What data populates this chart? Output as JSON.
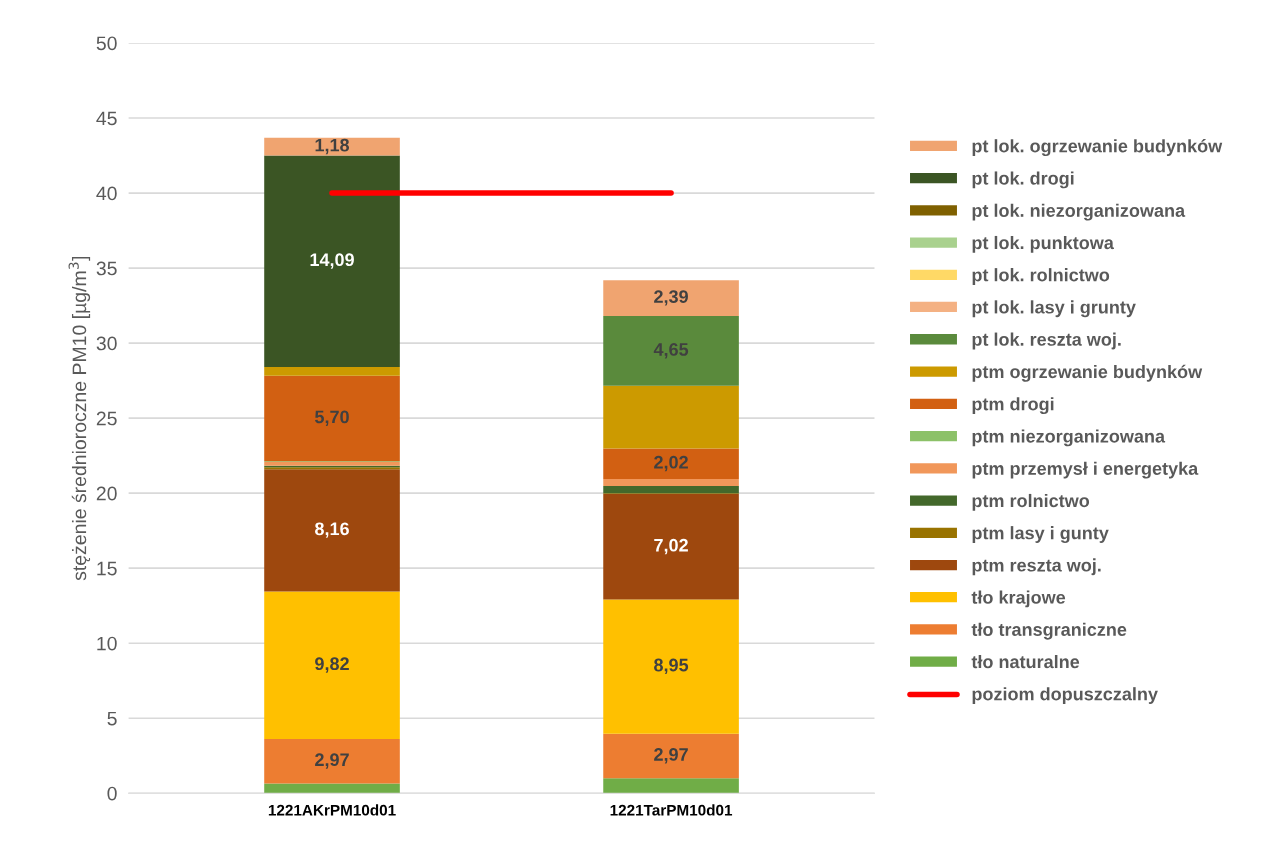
{
  "chart_data": {
    "type": "bar",
    "stacked": true,
    "ylabel": "stężenie średnioroczne PM10 [µg/m$^{3}$]",
    "categories": [
      "1221AKrPM10d01",
      "1221TarPM10d01"
    ],
    "ylim": [
      0,
      50
    ],
    "yticks": [
      0,
      5,
      10,
      15,
      20,
      25,
      30,
      35,
      40,
      45,
      50
    ],
    "grid": "y",
    "legend": "right",
    "series": [
      {
        "name": "tło naturalne",
        "color": "#70ad47",
        "values": [
          0.65,
          1.0
        ],
        "value_labels": [
          null,
          null
        ]
      },
      {
        "name": "tło transgraniczne",
        "color": "#ed7d31",
        "values": [
          2.97,
          2.97
        ],
        "value_labels": [
          "2,97",
          "2,97"
        ]
      },
      {
        "name": "tło krajowe",
        "color": "#ffc000",
        "values": [
          9.82,
          8.95
        ],
        "value_labels": [
          "9,82",
          "8,95"
        ]
      },
      {
        "name": "ptm reszta woj.",
        "color": "#9e480e",
        "values": [
          8.16,
          7.02
        ],
        "value_labels": [
          "8,16",
          "7,02"
        ]
      },
      {
        "name": "ptm lasy i gunty",
        "color": "#997300",
        "values": [
          0.13,
          0.06
        ],
        "value_labels": [
          null,
          null
        ]
      },
      {
        "name": "ptm rolnictwo",
        "color": "#43682b",
        "values": [
          0.1,
          0.47
        ],
        "value_labels": [
          null,
          null
        ]
      },
      {
        "name": "ptm przemysł i energetyka",
        "color": "#f1975a",
        "values": [
          0.25,
          0.48
        ],
        "value_labels": [
          null,
          null
        ]
      },
      {
        "name": "ptm niezorganizowana",
        "color": "#8cc168",
        "values": [
          0.05,
          0.0
        ],
        "value_labels": [
          null,
          null
        ]
      },
      {
        "name": "ptm drogi",
        "color": "#d26012",
        "values": [
          5.7,
          2.02
        ],
        "value_labels": [
          "5,70",
          "2,02"
        ]
      },
      {
        "name": "ptm ogrzewanie budynków",
        "color": "#cc9a00",
        "values": [
          0.58,
          4.18
        ],
        "value_labels": [
          null,
          null
        ]
      },
      {
        "name": "pt lok. reszta woj.",
        "color": "#5a8a3c",
        "values": [
          0.0,
          4.65
        ],
        "value_labels": [
          null,
          "4,65"
        ]
      },
      {
        "name": "pt lok. lasy i grunty",
        "color": "#f4b183",
        "values": [
          0.0,
          0.0
        ],
        "value_labels": [
          null,
          null
        ]
      },
      {
        "name": "pt lok. rolnictwo",
        "color": "#ffd966",
        "values": [
          0.0,
          0.0
        ],
        "value_labels": [
          null,
          null
        ]
      },
      {
        "name": "pt lok. punktowa",
        "color": "#a9d18e",
        "values": [
          0.0,
          0.0
        ],
        "value_labels": [
          null,
          null
        ]
      },
      {
        "name": "pt lok. niezorganizowana",
        "color": "#7f6000",
        "values": [
          0.0,
          0.0
        ],
        "value_labels": [
          null,
          null
        ]
      },
      {
        "name": "pt lok. drogi",
        "color": "#3b5524",
        "values": [
          14.09,
          0.0
        ],
        "value_labels": [
          "14,09",
          null
        ]
      },
      {
        "name": "pt lok. ogrzewanie budynków",
        "color": "#f0a470",
        "values": [
          1.18,
          2.39
        ],
        "value_labels": [
          "1,18",
          "2,39"
        ]
      },
      {
        "name": "poziom dopuszczalny",
        "type": "line",
        "color": "#ff0000",
        "values": [
          40,
          40
        ]
      }
    ]
  }
}
